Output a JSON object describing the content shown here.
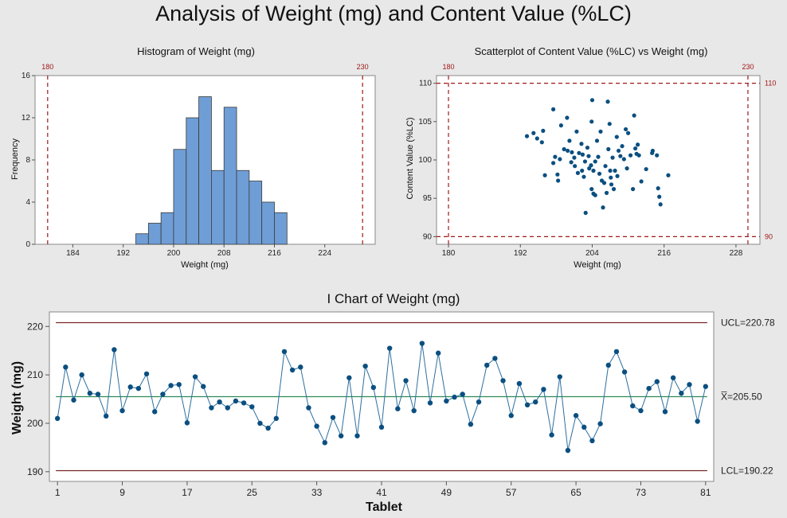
{
  "title": "Analysis of Weight (mg) and Content Value (%LC)",
  "colors": {
    "background": "#e8e8e8",
    "bar_fill": "#6f9ed6",
    "point": "#0b4f80",
    "line": "#2c6fa0",
    "reference": "#a01818",
    "center_line": "#2e8b57",
    "control_limit": "#7a2525"
  },
  "chart_data": [
    {
      "type": "bar",
      "title": "Histogram of Weight (mg)",
      "xlabel": "Weight (mg)",
      "ylabel": "Frequency",
      "xlim": [
        178,
        232
      ],
      "ylim": [
        0,
        16
      ],
      "xticks": [
        184,
        192,
        200,
        208,
        216,
        224
      ],
      "yticks": [
        0,
        4,
        8,
        12,
        16
      ],
      "bin_width": 2,
      "bin_starts": [
        194,
        196,
        198,
        200,
        202,
        204,
        206,
        208,
        210,
        212,
        214,
        216
      ],
      "values": [
        1,
        2,
        3,
        9,
        12,
        14,
        7,
        13,
        7,
        6,
        4,
        3
      ],
      "reference_lines": [
        180,
        230
      ]
    },
    {
      "type": "scatter",
      "title": "Scatterplot of Content Value (%LC) vs Weight (mg)",
      "xlabel": "Weight (mg)",
      "ylabel": "Content Value (%LC)",
      "xlim": [
        178,
        232
      ],
      "ylim": [
        89,
        111
      ],
      "xticks": [
        180,
        192,
        204,
        216,
        228
      ],
      "yticks": [
        90,
        95,
        100,
        105,
        110
      ],
      "reference_x": [
        180,
        230
      ],
      "reference_y": [
        90,
        110
      ],
      "points": [
        [
          193.1,
          103.1
        ],
        [
          194.2,
          103.5
        ],
        [
          194.8,
          102.8
        ],
        [
          195.6,
          102.3
        ],
        [
          195.8,
          103.8
        ],
        [
          196.1,
          98.0
        ],
        [
          197.5,
          106.6
        ],
        [
          197.5,
          99.6
        ],
        [
          197.8,
          100.4
        ],
        [
          198.2,
          98.1
        ],
        [
          198.3,
          97.3
        ],
        [
          198.8,
          104.5
        ],
        [
          198.6,
          100.1
        ],
        [
          199.3,
          101.4
        ],
        [
          199.8,
          105.5
        ],
        [
          199.9,
          101.2
        ],
        [
          200.2,
          102.5
        ],
        [
          200.5,
          99.7
        ],
        [
          200.6,
          101.0
        ],
        [
          201.0,
          100.3
        ],
        [
          201.1,
          99.2
        ],
        [
          201.4,
          103.7
        ],
        [
          201.6,
          98.3
        ],
        [
          201.8,
          100.9
        ],
        [
          202.2,
          102.1
        ],
        [
          202.3,
          98.6
        ],
        [
          202.4,
          100.7
        ],
        [
          202.6,
          97.8
        ],
        [
          202.8,
          99.8
        ],
        [
          202.9,
          93.1
        ],
        [
          203.2,
          101.6
        ],
        [
          203.4,
          100.5
        ],
        [
          203.5,
          98.9
        ],
        [
          203.8,
          99.3
        ],
        [
          203.9,
          105.0
        ],
        [
          203.9,
          96.2
        ],
        [
          204.0,
          107.8
        ],
        [
          204.2,
          98.6
        ],
        [
          204.2,
          95.6
        ],
        [
          204.5,
          99.8
        ],
        [
          204.5,
          95.4
        ],
        [
          204.8,
          102.5
        ],
        [
          205.0,
          100.4
        ],
        [
          205.2,
          98.2
        ],
        [
          205.4,
          103.7
        ],
        [
          205.6,
          97.3
        ],
        [
          205.8,
          93.8
        ],
        [
          206.0,
          97.0
        ],
        [
          206.2,
          99.2
        ],
        [
          206.4,
          95.7
        ],
        [
          206.6,
          107.6
        ],
        [
          206.7,
          101.4
        ],
        [
          206.9,
          104.7
        ],
        [
          207.0,
          98.6
        ],
        [
          207.1,
          97.7
        ],
        [
          207.2,
          96.8
        ],
        [
          207.4,
          100.3
        ],
        [
          207.6,
          96.2
        ],
        [
          207.8,
          98.6
        ],
        [
          208.1,
          103.0
        ],
        [
          208.2,
          97.9
        ],
        [
          208.4,
          101.2
        ],
        [
          208.7,
          100.5
        ],
        [
          209.0,
          101.8
        ],
        [
          209.3,
          100.1
        ],
        [
          209.6,
          104.0
        ],
        [
          209.8,
          98.9
        ],
        [
          210.0,
          103.5
        ],
        [
          210.4,
          100.6
        ],
        [
          210.8,
          96.2
        ],
        [
          211.0,
          105.8
        ],
        [
          211.2,
          101.5
        ],
        [
          211.4,
          100.8
        ],
        [
          211.6,
          102.0
        ],
        [
          211.8,
          100.6
        ],
        [
          212.2,
          97.2
        ],
        [
          213.0,
          98.8
        ],
        [
          214.1,
          101.2
        ],
        [
          214.8,
          100.6
        ],
        [
          215.0,
          96.3
        ],
        [
          215.2,
          95.2
        ],
        [
          215.4,
          94.2
        ],
        [
          216.7,
          98.0
        ],
        [
          214.0,
          100.9
        ]
      ]
    },
    {
      "type": "line",
      "title": "I Chart of Weight (mg)",
      "xlabel": "Tablet",
      "ylabel": "Weight (mg)",
      "xlim": [
        0,
        82
      ],
      "ylim": [
        188,
        223
      ],
      "xticks": [
        1,
        9,
        17,
        25,
        33,
        41,
        49,
        57,
        65,
        73,
        81
      ],
      "yticks": [
        190,
        200,
        210,
        220
      ],
      "ucl": 220.78,
      "center": 205.5,
      "lcl": 190.22,
      "limit_labels": {
        "ucl": "UCL=220.78",
        "center": "X̅=205.50",
        "lcl": "LCL=190.22"
      },
      "values": [
        201.0,
        211.6,
        204.8,
        210.0,
        206.2,
        206.0,
        201.5,
        215.2,
        202.6,
        207.5,
        207.2,
        210.2,
        202.4,
        206.0,
        207.8,
        208.0,
        200.1,
        209.6,
        207.6,
        203.2,
        204.4,
        203.2,
        204.6,
        204.2,
        203.4,
        200.0,
        199.0,
        201.0,
        214.8,
        211.0,
        211.6,
        203.2,
        199.4,
        196.0,
        201.2,
        197.4,
        209.4,
        197.4,
        211.8,
        207.4,
        199.2,
        215.5,
        203.0,
        208.8,
        202.6,
        216.5,
        204.2,
        214.5,
        204.6,
        205.4,
        206.0,
        199.8,
        204.4,
        212.0,
        213.4,
        208.8,
        201.6,
        208.2,
        203.8,
        204.4,
        207.0,
        197.6,
        209.6,
        194.4,
        201.6,
        199.2,
        196.4,
        199.9,
        212.0,
        214.8,
        210.6,
        203.6,
        202.6,
        207.2,
        208.6,
        202.4,
        209.4,
        206.2,
        208.0,
        200.4,
        207.6
      ]
    }
  ]
}
